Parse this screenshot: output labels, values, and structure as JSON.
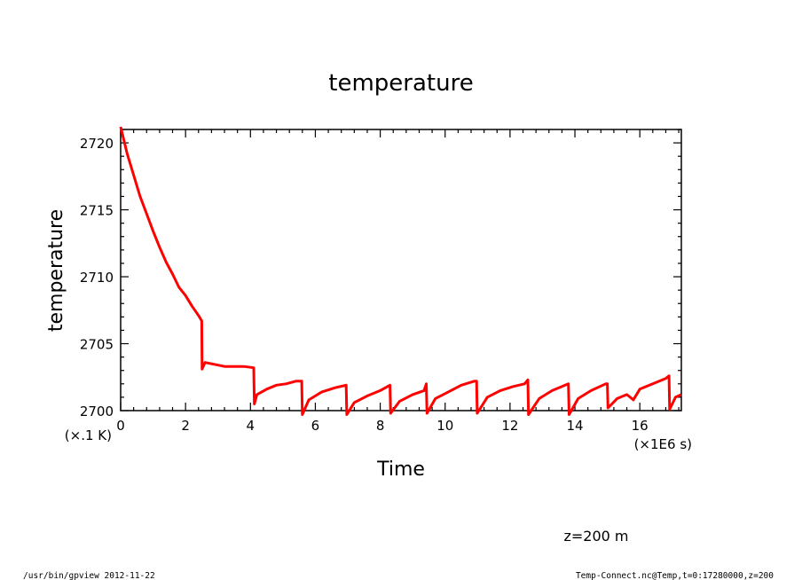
{
  "chart_data": {
    "type": "line",
    "title": "temperature",
    "xlabel": "Time",
    "ylabel": "temperature",
    "x_unit": "(×1E6 s)",
    "y_unit": "(×.1 K)",
    "xlim": [
      0,
      17.28
    ],
    "ylim": [
      2700,
      2721
    ],
    "x_ticks": [
      0,
      2,
      4,
      6,
      8,
      10,
      12,
      14,
      16
    ],
    "y_ticks": [
      2700,
      2705,
      2710,
      2715,
      2720
    ],
    "grid": false,
    "series": [
      {
        "color": "#ff0000",
        "x": [
          0,
          0.2,
          0.4,
          0.6,
          0.8,
          1.0,
          1.2,
          1.4,
          1.6,
          1.8,
          2.0,
          2.2,
          2.4,
          2.5,
          2.51,
          2.6,
          2.8,
          3.0,
          3.2,
          3.4,
          3.6,
          3.8,
          4.1,
          4.12,
          4.2,
          4.5,
          4.8,
          5.1,
          5.4,
          5.58,
          5.6,
          5.8,
          6.2,
          6.6,
          6.95,
          6.97,
          7.2,
          7.6,
          8.0,
          8.3,
          8.32,
          8.6,
          9.0,
          9.35,
          9.42,
          9.44,
          9.7,
          10.1,
          10.5,
          10.9,
          10.97,
          10.99,
          11.3,
          11.7,
          12.1,
          12.45,
          12.55,
          12.57,
          12.9,
          13.3,
          13.7,
          13.8,
          13.82,
          14.1,
          14.5,
          14.95,
          15.0,
          15.02,
          15.3,
          15.6,
          15.8,
          16.0,
          16.4,
          16.8,
          16.9,
          16.92,
          17.0,
          17.1,
          17.28
        ],
        "y": [
          2721.2,
          2719.2,
          2717.6,
          2716.0,
          2714.7,
          2713.4,
          2712.2,
          2711.1,
          2710.2,
          2709.2,
          2708.6,
          2707.8,
          2707.1,
          2706.7,
          2703.1,
          2703.6,
          2703.5,
          2703.4,
          2703.3,
          2703.3,
          2703.3,
          2703.3,
          2703.2,
          2700.5,
          2701.2,
          2701.6,
          2701.9,
          2702.0,
          2702.2,
          2702.2,
          2699.7,
          2700.8,
          2701.4,
          2701.7,
          2701.9,
          2699.7,
          2700.6,
          2701.1,
          2701.5,
          2701.9,
          2699.8,
          2700.7,
          2701.2,
          2701.5,
          2702.0,
          2699.8,
          2700.9,
          2701.4,
          2701.9,
          2702.2,
          2702.2,
          2699.8,
          2701.0,
          2701.5,
          2701.8,
          2702.0,
          2702.3,
          2699.7,
          2700.9,
          2701.5,
          2701.9,
          2702.0,
          2699.7,
          2700.9,
          2701.5,
          2702.0,
          2702.0,
          2700.2,
          2700.9,
          2701.2,
          2700.8,
          2701.6,
          2702.0,
          2702.4,
          2702.6,
          2700.1,
          2700.5,
          2701.0,
          2701.2
        ]
      }
    ],
    "annotation": "z=200 m"
  },
  "footer": {
    "left": "/usr/bin/gpview  2012-11-22",
    "right": "Temp-Connect.nc@Temp,t=0:17280000,z=200"
  }
}
